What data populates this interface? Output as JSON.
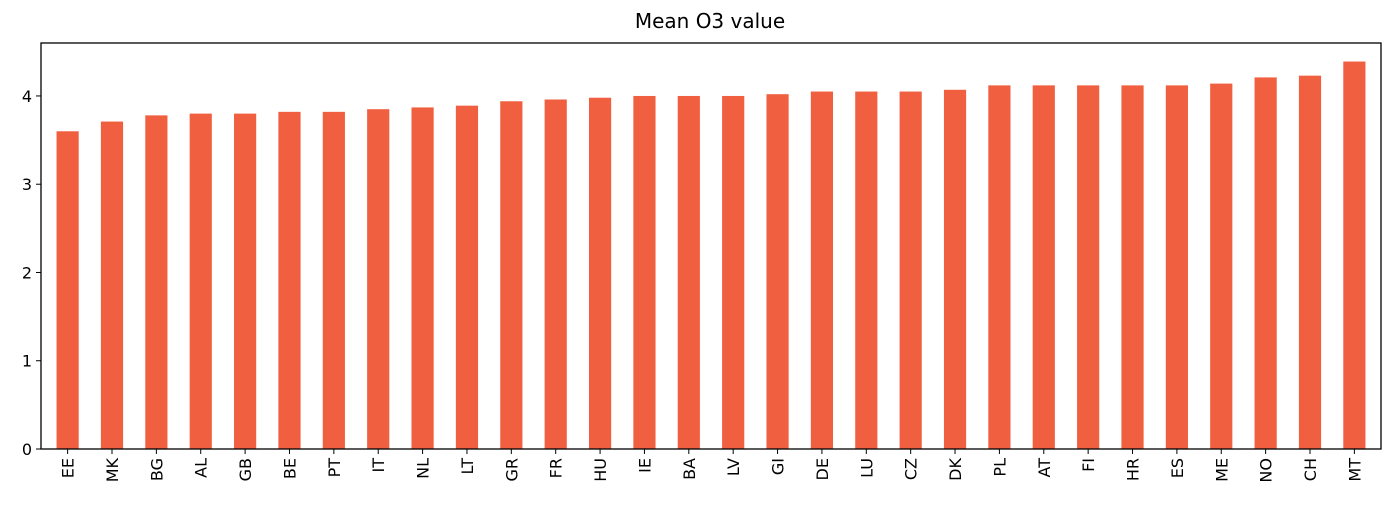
{
  "chart_data": {
    "type": "bar",
    "title": "Mean O3 value",
    "xlabel": "",
    "ylabel": "",
    "categories": [
      "EE",
      "MK",
      "BG",
      "AL",
      "GB",
      "BE",
      "PT",
      "IT",
      "NL",
      "LT",
      "GR",
      "FR",
      "HU",
      "IE",
      "BA",
      "LV",
      "GI",
      "DE",
      "LU",
      "CZ",
      "DK",
      "PL",
      "AT",
      "FI",
      "HR",
      "ES",
      "ME",
      "NO",
      "CH",
      "MT"
    ],
    "values": [
      3.6,
      3.71,
      3.78,
      3.8,
      3.8,
      3.82,
      3.82,
      3.85,
      3.87,
      3.89,
      3.94,
      3.96,
      3.98,
      4.0,
      4.0,
      4.0,
      4.02,
      4.05,
      4.05,
      4.05,
      4.07,
      4.12,
      4.12,
      4.12,
      4.12,
      4.12,
      4.14,
      4.21,
      4.23,
      4.39
    ],
    "ylim": [
      0,
      4.6
    ],
    "yticks": [
      0,
      1,
      2,
      3,
      4
    ],
    "bar_color": "#f06040",
    "grid": false,
    "legend": "none"
  }
}
